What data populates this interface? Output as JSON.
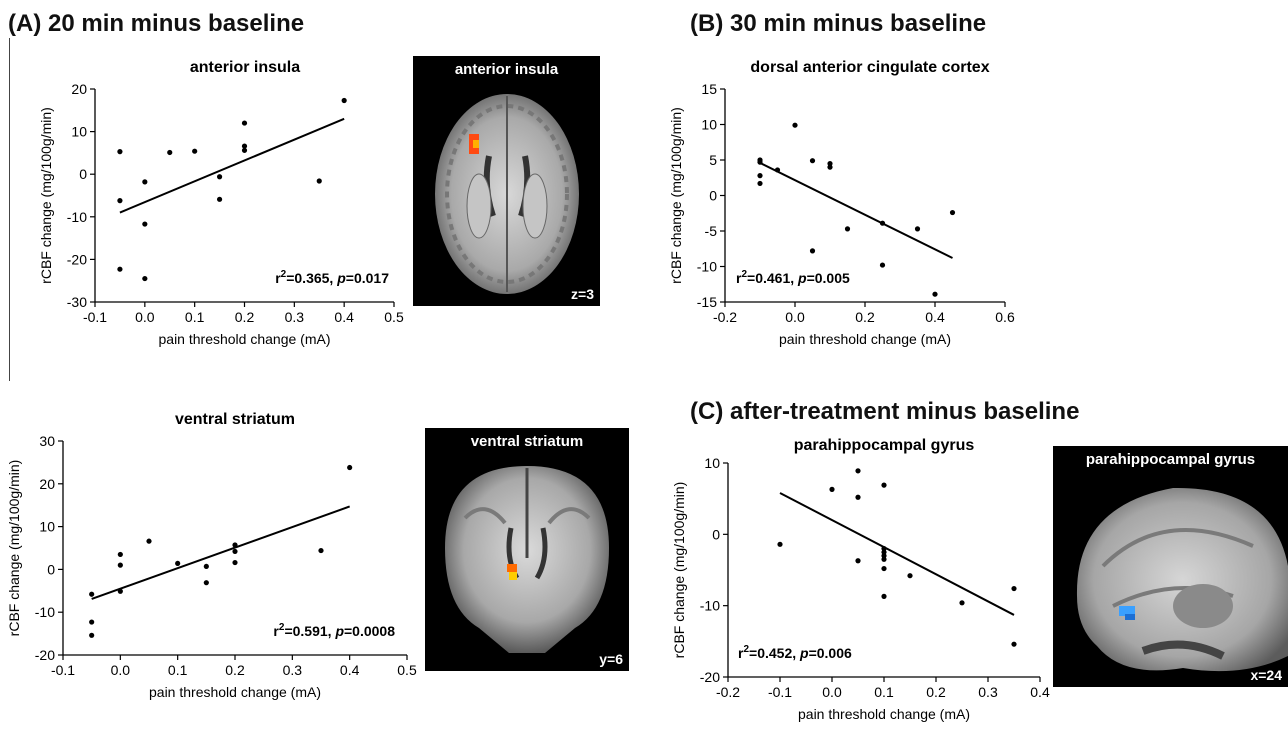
{
  "sections": {
    "a": "(A) 20 min minus baseline",
    "b": "(B) 30 min minus baseline",
    "c": "(C) after-treatment minus baseline"
  },
  "brains": [
    {
      "label": "anterior insula",
      "coord": "z=3",
      "view": "axial",
      "blob_color": "#ff4a12"
    },
    {
      "label": "ventral striatum",
      "coord": "y=6",
      "view": "coronal",
      "blob_color": "#ffcc00"
    },
    {
      "label": "parahippocampal gyrus",
      "coord": "x=24",
      "view": "sagittal",
      "blob_color": "#3aa0ff"
    }
  ],
  "chart_data": [
    {
      "type": "scatter",
      "title": "anterior insula",
      "xlabel": "pain threshold change (mA)",
      "ylabel": "rCBF change (mg/100g/min)",
      "xlim": [
        -0.1,
        0.5
      ],
      "ylim": [
        -30,
        20
      ],
      "xticks": [
        -0.1,
        0.0,
        0.1,
        0.2,
        0.3,
        0.4,
        0.5
      ],
      "yticks": [
        -30,
        -20,
        -10,
        0,
        10,
        20
      ],
      "xtick_labels": [
        "-0.1",
        "0.0",
        "0.1",
        "0.2",
        "0.3",
        "0.4",
        "0.5"
      ],
      "ytick_labels": [
        "-30",
        "-20",
        "-10",
        "0",
        "10",
        "20"
      ],
      "stat_r2": "0.365",
      "stat_p": "0.017",
      "points": [
        [
          -0.05,
          5.3
        ],
        [
          -0.05,
          -6.2
        ],
        [
          -0.05,
          -22.3
        ],
        [
          0.0,
          -1.8
        ],
        [
          0.0,
          -11.7
        ],
        [
          0.0,
          -24.5
        ],
        [
          0.05,
          5.1
        ],
        [
          0.1,
          5.4
        ],
        [
          0.15,
          -0.6
        ],
        [
          0.15,
          -5.9
        ],
        [
          0.2,
          12.0
        ],
        [
          0.2,
          6.6
        ],
        [
          0.2,
          5.6
        ],
        [
          0.35,
          -1.6
        ],
        [
          0.4,
          17.3
        ]
      ],
      "fit": [
        [
          -0.05,
          -9.0
        ],
        [
          0.4,
          13.0
        ]
      ]
    },
    {
      "type": "scatter",
      "title": "dorsal anterior cingulate cortex",
      "xlabel": "pain threshold change (mA)",
      "ylabel": "rCBF change (mg/100g/min)",
      "xlim": [
        -0.2,
        0.6
      ],
      "ylim": [
        -15,
        15
      ],
      "xticks": [
        -0.2,
        0.0,
        0.2,
        0.4,
        0.6
      ],
      "yticks": [
        -15,
        -10,
        -5,
        0,
        5,
        10,
        15
      ],
      "xtick_labels": [
        "-0.2",
        "0.0",
        "0.2",
        "0.4",
        "0.6"
      ],
      "ytick_labels": [
        "-15",
        "-10",
        "-5",
        "0",
        "5",
        "10",
        "15"
      ],
      "stat_r2": "0.461",
      "stat_p": "0.005",
      "points": [
        [
          -0.1,
          5.0
        ],
        [
          -0.1,
          4.7
        ],
        [
          -0.1,
          2.8
        ],
        [
          -0.1,
          1.7
        ],
        [
          -0.05,
          3.6
        ],
        [
          0.0,
          9.9
        ],
        [
          0.05,
          4.9
        ],
        [
          0.05,
          -7.8
        ],
        [
          0.1,
          4.5
        ],
        [
          0.1,
          4.0
        ],
        [
          0.15,
          -4.7
        ],
        [
          0.25,
          -3.9
        ],
        [
          0.25,
          -9.8
        ],
        [
          0.35,
          -4.7
        ],
        [
          0.4,
          -13.9
        ],
        [
          0.45,
          -2.4
        ]
      ],
      "fit": [
        [
          -0.1,
          4.6
        ],
        [
          0.45,
          -8.8
        ]
      ]
    },
    {
      "type": "scatter",
      "title": "ventral striatum",
      "xlabel": "pain threshold change (mA)",
      "ylabel": "rCBF change (mg/100g/min)",
      "xlim": [
        -0.1,
        0.5
      ],
      "ylim": [
        -20,
        30
      ],
      "xticks": [
        -0.1,
        0.0,
        0.1,
        0.2,
        0.3,
        0.4,
        0.5
      ],
      "yticks": [
        -20,
        -10,
        0,
        10,
        20,
        30
      ],
      "xtick_labels": [
        "-0.1",
        "0.0",
        "0.1",
        "0.2",
        "0.3",
        "0.4",
        "0.5"
      ],
      "ytick_labels": [
        "-20",
        "-10",
        "0",
        "10",
        "20",
        "30"
      ],
      "stat_r2": "0.591",
      "stat_p": "0.0008",
      "points": [
        [
          -0.05,
          -5.8
        ],
        [
          -0.05,
          -12.3
        ],
        [
          -0.05,
          -15.4
        ],
        [
          0.0,
          3.5
        ],
        [
          0.0,
          1.0
        ],
        [
          0.0,
          -5.1
        ],
        [
          0.05,
          6.6
        ],
        [
          0.1,
          1.4
        ],
        [
          0.15,
          0.7
        ],
        [
          0.15,
          -3.1
        ],
        [
          0.2,
          5.7
        ],
        [
          0.2,
          4.2
        ],
        [
          0.2,
          1.6
        ],
        [
          0.35,
          4.4
        ],
        [
          0.4,
          23.8
        ]
      ],
      "fit": [
        [
          -0.05,
          -6.9
        ],
        [
          0.4,
          14.7
        ]
      ]
    },
    {
      "type": "scatter",
      "title": "parahippocampal gyrus",
      "xlabel": "pain threshold change (mA)",
      "ylabel": "rCBF change (mg/100g/min)",
      "xlim": [
        -0.2,
        0.4
      ],
      "ylim": [
        -20,
        10
      ],
      "xticks": [
        -0.2,
        -0.1,
        0.0,
        0.1,
        0.2,
        0.3,
        0.4
      ],
      "yticks": [
        -20,
        -10,
        0,
        10
      ],
      "xtick_labels": [
        "-0.2",
        "-0.1",
        "0.0",
        "0.1",
        "0.2",
        "0.3",
        "0.4"
      ],
      "ytick_labels": [
        "-20",
        "-10",
        "0",
        "10"
      ],
      "stat_r2": "0.452",
      "stat_p": "0.006",
      "points": [
        [
          -0.1,
          -1.4
        ],
        [
          0.0,
          6.3
        ],
        [
          0.05,
          8.9
        ],
        [
          0.05,
          5.2
        ],
        [
          0.05,
          -3.7
        ],
        [
          0.1,
          6.9
        ],
        [
          0.1,
          -2.0
        ],
        [
          0.1,
          -2.5
        ],
        [
          0.1,
          -3.0
        ],
        [
          0.1,
          -3.5
        ],
        [
          0.1,
          -4.8
        ],
        [
          0.1,
          -8.7
        ],
        [
          0.15,
          -5.8
        ],
        [
          0.25,
          -9.6
        ],
        [
          0.35,
          -7.6
        ],
        [
          0.35,
          -15.4
        ]
      ],
      "fit": [
        [
          -0.1,
          5.8
        ],
        [
          0.35,
          -11.3
        ]
      ]
    }
  ]
}
